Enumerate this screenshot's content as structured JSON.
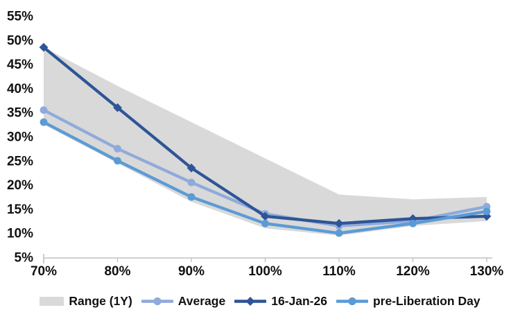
{
  "chart_data": {
    "type": "line",
    "title": "",
    "x": [
      70,
      80,
      90,
      100,
      110,
      120,
      130
    ],
    "x_tick_labels": [
      "70%",
      "80%",
      "90%",
      "100%",
      "110%",
      "120%",
      "130%"
    ],
    "y_ticks": [
      55,
      50,
      45,
      40,
      35,
      30,
      25,
      20,
      15,
      10,
      5
    ],
    "y_tick_labels": [
      "55%",
      "50%",
      "45%",
      "40%",
      "35%",
      "30%",
      "25%",
      "20%",
      "15%",
      "10%",
      "5%"
    ],
    "ylim": [
      5,
      55
    ],
    "xlabel": "",
    "ylabel": "",
    "grid": false,
    "legend_position": "bottom",
    "axis_color": "#BFBFBF",
    "text_color": "#111111",
    "range_band": {
      "name": "Range (1Y)",
      "color": "#D9D9D9",
      "max": [
        48.5,
        40.5,
        33,
        25.5,
        18,
        17,
        17.5
      ],
      "min": [
        32.5,
        24.5,
        16.5,
        11,
        9.5,
        11.5,
        12.5
      ]
    },
    "series": [
      {
        "name": "Average",
        "color": "#8FAADC",
        "marker": "circle",
        "values": [
          35.5,
          27.5,
          20.5,
          14,
          11.5,
          12.5,
          15.5
        ]
      },
      {
        "name": "16-Jan-26",
        "color": "#2E5596",
        "marker": "diamond",
        "values": [
          48.5,
          36,
          23.5,
          13.5,
          12,
          13,
          13.5
        ]
      },
      {
        "name": "pre-Liberation Day",
        "color": "#5B9BD5",
        "marker": "circle",
        "values": [
          33,
          25,
          17.5,
          12,
          10,
          12,
          14.5
        ]
      }
    ]
  }
}
